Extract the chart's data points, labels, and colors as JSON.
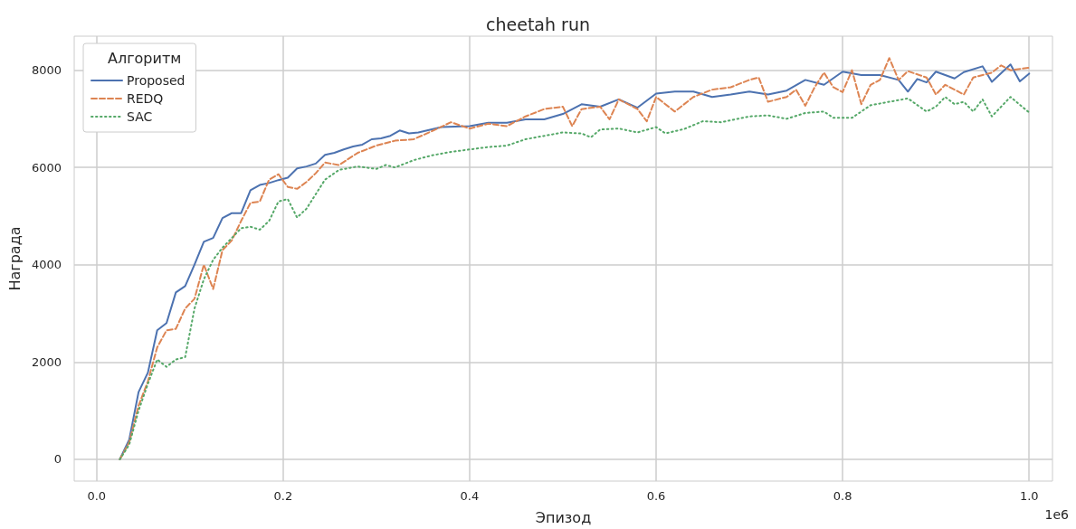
{
  "chart_data": {
    "type": "line",
    "title": "cheetah run",
    "xlabel": "Эпизод",
    "ylabel": "Награда",
    "legend_title": "Алгоритм",
    "legend": "top left",
    "grid": true,
    "annotations": [
      "1e6"
    ],
    "xlim": [
      -0.024,
      1.025
    ],
    "xticks": [
      {
        "value": 0,
        "label": "0.0"
      },
      0.2,
      0.4,
      0.6,
      0.8,
      {
        "value": 1,
        "label": "1.0"
      }
    ],
    "ylim": [
      -450,
      8700
    ],
    "yticks": [
      0,
      2000,
      4000,
      6000,
      8000
    ],
    "series": [
      {
        "name": "Proposed",
        "color": "#4c72b0",
        "line_style": "solid",
        "x": [
          0.025,
          0.035,
          0.045,
          0.055,
          0.065,
          0.075,
          0.085,
          0.095,
          0.105,
          0.115,
          0.125,
          0.135,
          0.145,
          0.155,
          0.165,
          0.175,
          0.185,
          0.195,
          0.205,
          0.215,
          0.225,
          0.235,
          0.245,
          0.255,
          0.265,
          0.275,
          0.285,
          0.295,
          0.305,
          0.315,
          0.325,
          0.335,
          0.345,
          0.37,
          0.4,
          0.42,
          0.44,
          0.46,
          0.48,
          0.5,
          0.52,
          0.54,
          0.56,
          0.58,
          0.6,
          0.62,
          0.64,
          0.66,
          0.68,
          0.7,
          0.72,
          0.74,
          0.76,
          0.78,
          0.8,
          0.82,
          0.84,
          0.86,
          0.87,
          0.88,
          0.89,
          0.9,
          0.92,
          0.93,
          0.95,
          0.96,
          0.98,
          0.99,
          1.0
        ],
        "values": [
          0,
          400,
          1380,
          1780,
          2650,
          2800,
          3430,
          3560,
          4000,
          4470,
          4550,
          4960,
          5060,
          5060,
          5530,
          5640,
          5680,
          5740,
          5790,
          5980,
          6020,
          6080,
          6260,
          6300,
          6370,
          6430,
          6470,
          6580,
          6600,
          6650,
          6760,
          6700,
          6720,
          6830,
          6850,
          6920,
          6920,
          6990,
          6990,
          7100,
          7300,
          7250,
          7400,
          7230,
          7520,
          7560,
          7560,
          7450,
          7500,
          7560,
          7500,
          7580,
          7800,
          7700,
          7970,
          7900,
          7900,
          7800,
          7560,
          7820,
          7750,
          7970,
          7830,
          7960,
          8080,
          7760,
          8120,
          7770,
          7930
        ]
      },
      {
        "name": "REDQ",
        "color": "#dd8452",
        "line_style": "dashed",
        "x": [
          0.025,
          0.035,
          0.045,
          0.055,
          0.065,
          0.075,
          0.085,
          0.095,
          0.105,
          0.115,
          0.125,
          0.135,
          0.145,
          0.155,
          0.165,
          0.175,
          0.185,
          0.195,
          0.205,
          0.215,
          0.225,
          0.235,
          0.245,
          0.26,
          0.28,
          0.3,
          0.32,
          0.34,
          0.36,
          0.38,
          0.4,
          0.42,
          0.44,
          0.46,
          0.48,
          0.5,
          0.51,
          0.52,
          0.54,
          0.55,
          0.56,
          0.58,
          0.59,
          0.6,
          0.62,
          0.64,
          0.66,
          0.68,
          0.7,
          0.71,
          0.72,
          0.74,
          0.75,
          0.76,
          0.77,
          0.78,
          0.79,
          0.8,
          0.81,
          0.82,
          0.83,
          0.84,
          0.85,
          0.86,
          0.87,
          0.89,
          0.9,
          0.91,
          0.93,
          0.94,
          0.96,
          0.97,
          0.98,
          1.0
        ],
        "values": [
          0,
          350,
          1100,
          1600,
          2300,
          2650,
          2680,
          3100,
          3300,
          4000,
          3500,
          4300,
          4500,
          4900,
          5270,
          5300,
          5750,
          5860,
          5600,
          5560,
          5700,
          5880,
          6100,
          6050,
          6300,
          6450,
          6550,
          6580,
          6750,
          6930,
          6800,
          6900,
          6850,
          7050,
          7200,
          7250,
          6850,
          7200,
          7250,
          6990,
          7400,
          7200,
          6950,
          7450,
          7150,
          7450,
          7600,
          7650,
          7800,
          7850,
          7350,
          7450,
          7600,
          7270,
          7650,
          7950,
          7650,
          7550,
          8000,
          7300,
          7700,
          7800,
          8250,
          7800,
          7980,
          7850,
          7500,
          7700,
          7500,
          7850,
          7950,
          8100,
          8000,
          8050
        ]
      },
      {
        "name": "SAC",
        "color": "#55a868",
        "line_style": "dotted",
        "x": [
          0.025,
          0.035,
          0.045,
          0.055,
          0.065,
          0.075,
          0.085,
          0.095,
          0.105,
          0.115,
          0.125,
          0.135,
          0.145,
          0.155,
          0.165,
          0.175,
          0.185,
          0.195,
          0.205,
          0.215,
          0.225,
          0.235,
          0.245,
          0.26,
          0.28,
          0.3,
          0.31,
          0.32,
          0.34,
          0.36,
          0.38,
          0.4,
          0.42,
          0.44,
          0.46,
          0.48,
          0.5,
          0.52,
          0.53,
          0.54,
          0.56,
          0.58,
          0.6,
          0.61,
          0.63,
          0.65,
          0.67,
          0.7,
          0.72,
          0.74,
          0.76,
          0.78,
          0.79,
          0.81,
          0.83,
          0.85,
          0.87,
          0.89,
          0.9,
          0.91,
          0.92,
          0.93,
          0.94,
          0.95,
          0.96,
          0.98,
          1.0
        ],
        "values": [
          0,
          300,
          1000,
          1550,
          2050,
          1900,
          2050,
          2100,
          3100,
          3700,
          4100,
          4350,
          4550,
          4750,
          4780,
          4720,
          4900,
          5300,
          5350,
          4970,
          5150,
          5450,
          5750,
          5950,
          6020,
          5970,
          6050,
          6000,
          6150,
          6250,
          6320,
          6370,
          6420,
          6450,
          6580,
          6650,
          6720,
          6700,
          6620,
          6780,
          6800,
          6720,
          6830,
          6700,
          6790,
          6950,
          6930,
          7050,
          7070,
          7000,
          7120,
          7150,
          7020,
          7020,
          7280,
          7350,
          7420,
          7150,
          7250,
          7450,
          7300,
          7350,
          7150,
          7400,
          7050,
          7450,
          7130
        ]
      }
    ]
  }
}
